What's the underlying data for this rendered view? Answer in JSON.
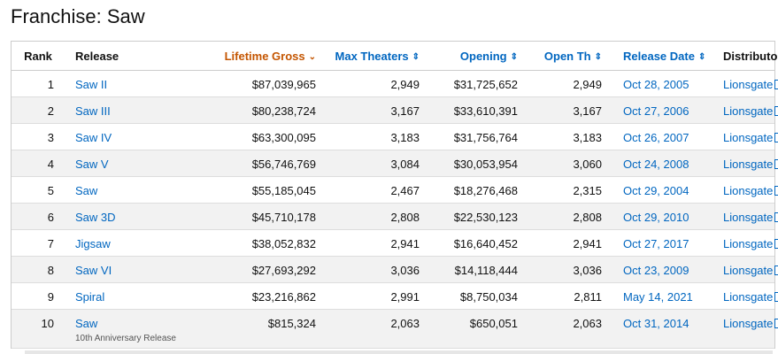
{
  "page": {
    "title": "Franchise: Saw"
  },
  "table": {
    "headers": {
      "rank": "Rank",
      "release": "Release",
      "lifetime_gross": "Lifetime Gross",
      "max_theaters": "Max Theaters",
      "opening": "Opening",
      "open_th": "Open Th",
      "release_date": "Release Date",
      "distributor": "Distributor"
    },
    "sort_indicators": {
      "active": "⌄",
      "inactive": "⇕"
    },
    "rows": [
      {
        "rank": "1",
        "release": "Saw II",
        "sub": "",
        "gross": "$87,039,965",
        "max": "2,949",
        "opening": "$31,725,652",
        "open_th": "2,949",
        "date": "Oct 28, 2005",
        "dist": "Lionsgate"
      },
      {
        "rank": "2",
        "release": "Saw III",
        "sub": "",
        "gross": "$80,238,724",
        "max": "3,167",
        "opening": "$33,610,391",
        "open_th": "3,167",
        "date": "Oct 27, 2006",
        "dist": "Lionsgate"
      },
      {
        "rank": "3",
        "release": "Saw IV",
        "sub": "",
        "gross": "$63,300,095",
        "max": "3,183",
        "opening": "$31,756,764",
        "open_th": "3,183",
        "date": "Oct 26, 2007",
        "dist": "Lionsgate"
      },
      {
        "rank": "4",
        "release": "Saw V",
        "sub": "",
        "gross": "$56,746,769",
        "max": "3,084",
        "opening": "$30,053,954",
        "open_th": "3,060",
        "date": "Oct 24, 2008",
        "dist": "Lionsgate"
      },
      {
        "rank": "5",
        "release": "Saw",
        "sub": "",
        "gross": "$55,185,045",
        "max": "2,467",
        "opening": "$18,276,468",
        "open_th": "2,315",
        "date": "Oct 29, 2004",
        "dist": "Lionsgate"
      },
      {
        "rank": "6",
        "release": "Saw 3D",
        "sub": "",
        "gross": "$45,710,178",
        "max": "2,808",
        "opening": "$22,530,123",
        "open_th": "2,808",
        "date": "Oct 29, 2010",
        "dist": "Lionsgate"
      },
      {
        "rank": "7",
        "release": "Jigsaw",
        "sub": "",
        "gross": "$38,052,832",
        "max": "2,941",
        "opening": "$16,640,452",
        "open_th": "2,941",
        "date": "Oct 27, 2017",
        "dist": "Lionsgate"
      },
      {
        "rank": "8",
        "release": "Saw VI",
        "sub": "",
        "gross": "$27,693,292",
        "max": "3,036",
        "opening": "$14,118,444",
        "open_th": "3,036",
        "date": "Oct 23, 2009",
        "dist": "Lionsgate"
      },
      {
        "rank": "9",
        "release": "Spiral",
        "sub": "",
        "gross": "$23,216,862",
        "max": "2,991",
        "opening": "$8,750,034",
        "open_th": "2,811",
        "date": "May 14, 2021",
        "dist": "Lionsgate"
      },
      {
        "rank": "10",
        "release": "Saw",
        "sub": "10th Anniversary Release",
        "gross": "$815,324",
        "max": "2,063",
        "opening": "$650,051",
        "open_th": "2,063",
        "date": "Oct 31, 2014",
        "dist": "Lionsgate"
      }
    ]
  }
}
